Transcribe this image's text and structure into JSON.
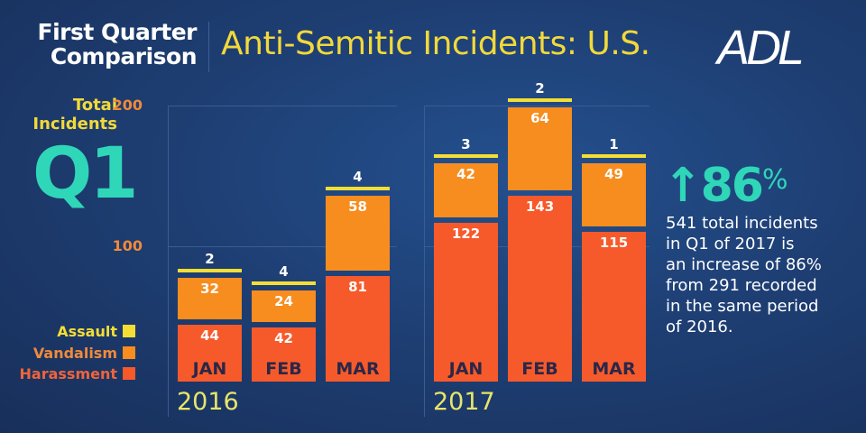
{
  "header": {
    "subtitle_line1": "First Quarter",
    "subtitle_line2": "Comparison",
    "title": "Anti-Semitic Incidents: U.S.",
    "logo": "ADL"
  },
  "side": {
    "label_line1": "Total",
    "label_line2": "Incidents",
    "quarter": "Q1"
  },
  "summary": {
    "arrow_icon": "up-arrow",
    "percent": "86",
    "percent_sign": "%",
    "lines": [
      "541 total incidents",
      "in Q1 of 2017 is",
      "an increase of 86%",
      "from 291 recorded",
      "in the same period",
      "of 2016."
    ]
  },
  "colors": {
    "assault": "#f4de35",
    "vandalism": "#f78d1f",
    "harassment": "#f65a2b",
    "accent": "#2fd6b8"
  },
  "chart_data": {
    "type": "bar",
    "stacked": true,
    "title": "Anti-Semitic Incidents: U.S.",
    "ylabel": "Total Incidents",
    "ylim": [
      0,
      200
    ],
    "yticks": [
      "100",
      "200"
    ],
    "legend": [
      {
        "name": "Assault"
      },
      {
        "name": "Vandalism"
      },
      {
        "name": "Harassment"
      }
    ],
    "legend_position": "left",
    "panels": [
      {
        "year": "2016",
        "categories": [
          "JAN",
          "FEB",
          "MAR"
        ],
        "series": [
          {
            "name": "Harassment",
            "values": [
              44,
              42,
              81
            ]
          },
          {
            "name": "Vandalism",
            "values": [
              32,
              24,
              58
            ]
          },
          {
            "name": "Assault",
            "values": [
              2,
              4,
              4
            ]
          }
        ]
      },
      {
        "year": "2017",
        "categories": [
          "JAN",
          "FEB",
          "MAR"
        ],
        "series": [
          {
            "name": "Harassment",
            "values": [
              122,
              143,
              115
            ]
          },
          {
            "name": "Vandalism",
            "values": [
              42,
              64,
              49
            ]
          },
          {
            "name": "Assault",
            "values": [
              3,
              2,
              1
            ]
          }
        ]
      }
    ]
  }
}
